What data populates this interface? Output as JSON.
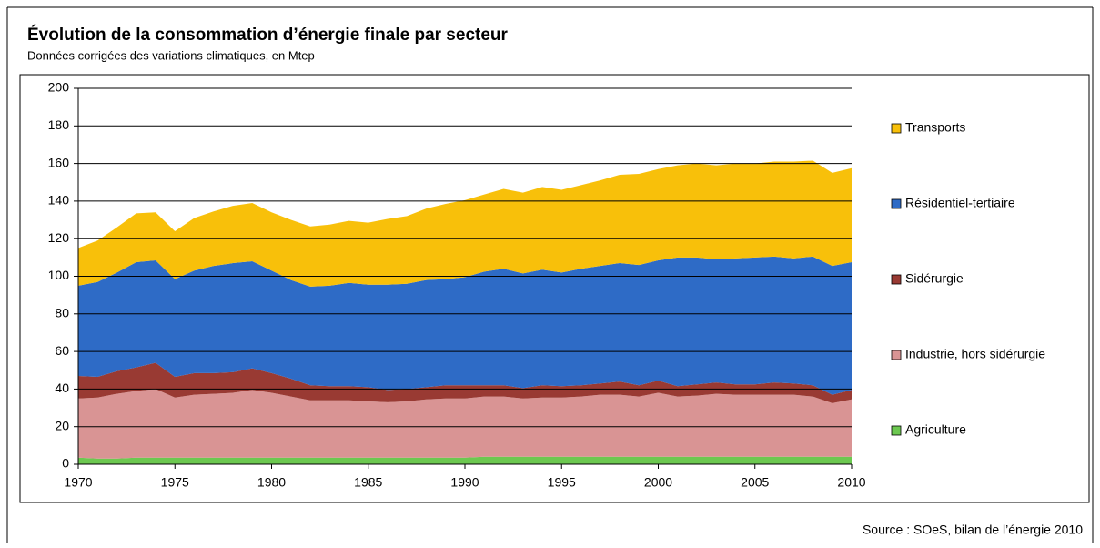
{
  "chart_data": {
    "type": "stacked_area",
    "title": "Évolution de la consommation d’énergie finale par secteur",
    "subtitle": "Données corrigées des variations climatiques, en Mtep",
    "source": "Source : SOeS, bilan de l’énergie 2010",
    "x": [
      1970,
      1971,
      1972,
      1973,
      1974,
      1975,
      1976,
      1977,
      1978,
      1979,
      1980,
      1981,
      1982,
      1983,
      1984,
      1985,
      1986,
      1987,
      1988,
      1989,
      1990,
      1991,
      1992,
      1993,
      1994,
      1995,
      1996,
      1997,
      1998,
      1999,
      2000,
      2001,
      2002,
      2003,
      2004,
      2005,
      2006,
      2007,
      2008,
      2009,
      2010
    ],
    "xlim": [
      1970,
      2010
    ],
    "xticks": [
      1970,
      1975,
      1980,
      1985,
      1990,
      1995,
      2000,
      2005,
      2010
    ],
    "ylim": [
      0,
      200
    ],
    "yticks": [
      0,
      20,
      40,
      60,
      80,
      100,
      120,
      140,
      160,
      180,
      200
    ],
    "grid": true,
    "legend": "right",
    "series": [
      {
        "name": "Agriculture",
        "color": "#6cc850",
        "values": [
          3.5,
          3,
          3,
          3.5,
          3.5,
          3.5,
          3.5,
          3.5,
          3.5,
          3.5,
          3.5,
          3.5,
          3.5,
          3.5,
          3.5,
          3.5,
          3.5,
          3.5,
          3.5,
          3.5,
          3.5,
          4,
          4,
          4,
          4,
          4,
          4,
          4,
          4,
          4,
          4,
          4,
          4,
          4,
          4,
          4,
          4,
          4,
          4,
          4,
          4
        ]
      },
      {
        "name": "Industrie, hors sidérurgie",
        "color": "#d99494",
        "values": [
          31.5,
          32.5,
          34.5,
          35.5,
          36.5,
          32,
          33.5,
          34,
          34.5,
          36,
          34.5,
          32.5,
          30.5,
          30.5,
          30.5,
          30,
          29.5,
          30,
          31,
          31.5,
          31.5,
          32,
          32,
          31,
          31.5,
          31.5,
          32,
          33,
          33,
          32,
          34,
          32,
          32.5,
          33.5,
          33,
          33,
          33,
          33,
          32,
          28.5,
          30.5
        ]
      },
      {
        "name": "Sidérurgie",
        "color": "#993a33",
        "values": [
          12,
          11,
          12,
          12.5,
          14,
          11,
          11.5,
          11,
          11,
          11.5,
          10.5,
          9.5,
          8,
          7.5,
          7.5,
          7.5,
          6.5,
          6.5,
          6.5,
          7,
          7,
          6,
          6,
          5.5,
          6.5,
          6,
          6,
          6,
          7,
          6,
          6.5,
          5.5,
          6,
          6,
          5.5,
          5.5,
          6.5,
          6,
          6,
          4.5,
          5
        ]
      },
      {
        "name": "Résidentiel-tertiaire",
        "color": "#2e6bc6",
        "values": [
          48,
          50.5,
          52.5,
          56,
          54.5,
          52,
          54.5,
          57,
          58,
          57,
          54.5,
          52.5,
          52.5,
          53.5,
          55,
          54.5,
          56,
          56,
          57,
          56.5,
          57.5,
          60.5,
          62,
          61,
          61.5,
          60.5,
          62,
          62.5,
          63,
          64,
          64,
          68.5,
          67.5,
          65.5,
          67,
          67.5,
          67,
          66.5,
          68.5,
          68.5,
          68
        ]
      },
      {
        "name": "Transports",
        "color": "#f8c00a",
        "values": [
          20,
          22,
          24,
          26,
          25.5,
          25.5,
          28,
          29,
          30.5,
          31,
          31,
          32,
          32,
          32.5,
          33,
          33,
          35,
          36,
          38,
          40,
          41,
          41,
          42.5,
          43,
          44,
          44,
          44.5,
          45.5,
          47,
          48.5,
          48.5,
          49,
          50,
          50,
          50.5,
          50,
          50.5,
          51.5,
          51,
          49.5,
          50
        ]
      }
    ]
  }
}
